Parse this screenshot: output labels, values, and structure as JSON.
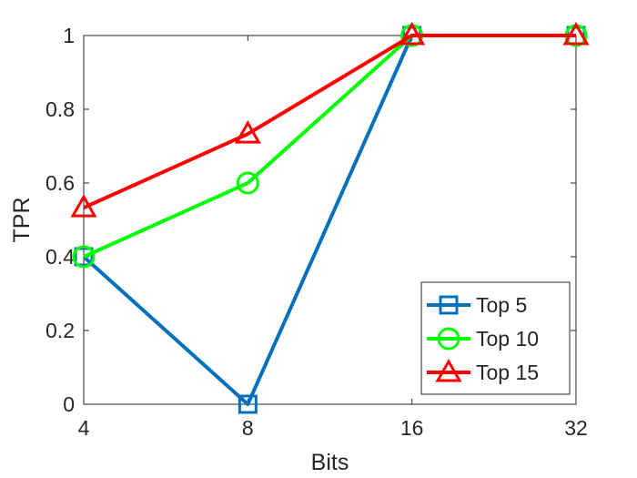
{
  "chart_data": {
    "type": "line",
    "xlabel": "Bits",
    "ylabel": "TPR",
    "x": [
      "4",
      "8",
      "16",
      "32"
    ],
    "ylim": [
      0,
      1
    ],
    "yticks": [
      "0",
      "0.2",
      "0.4",
      "0.6",
      "0.8",
      "1"
    ],
    "grid": false,
    "legend_position": "bottom-right",
    "series": [
      {
        "name": "Top 5",
        "values": [
          0.4,
          0.0,
          1.0,
          1.0
        ],
        "color": "#0072BD",
        "marker": "square"
      },
      {
        "name": "Top 10",
        "values": [
          0.4,
          0.6,
          1.0,
          1.0
        ],
        "color": "#00FF00",
        "marker": "circle"
      },
      {
        "name": "Top 15",
        "values": [
          0.533,
          0.733,
          1.0,
          1.0
        ],
        "color": "#FF0000",
        "marker": "triangle"
      }
    ]
  }
}
